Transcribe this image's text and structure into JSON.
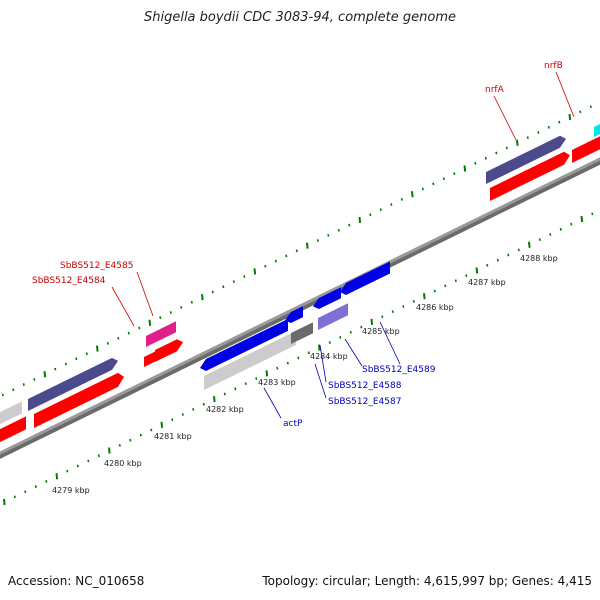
{
  "title": "Shigella boydii CDC 3083-94, complete genome",
  "footer": {
    "accession": "Accession: NC_010658",
    "topology": "Topology: circular; Length: 4,615,997 bp; Genes: 4,415"
  },
  "tick_labels": [
    "4279 kbp",
    "4280 kbp",
    "4281 kbp",
    "4282 kbp",
    "4283 kbp",
    "4284 kbp",
    "4285 kbp",
    "4286 kbp",
    "4287 kbp",
    "4288 kbp"
  ],
  "gene_labels": {
    "forward": [
      "nrfA",
      "nrfB",
      "SbBS512_E4585",
      "SbBS512_E4584"
    ],
    "reverse": [
      "actP",
      "SbBS512_E4587",
      "SbBS512_E4588",
      "SbBS512_E4589"
    ]
  },
  "colors": {
    "forward_label": "#cc0000",
    "reverse_label": "#0000bb",
    "red_feature": "#ff0000",
    "navy_feature": "#4a4a8c",
    "blue_feature": "#0000e6",
    "magenta_feature": "#e0208a",
    "light_purple_feature": "#7f6fd6",
    "grey_feature": "#cccccc",
    "cyan_feature": "#00e5e5",
    "tick_green": "#007a00",
    "backbone": "#8a8a8a"
  }
}
